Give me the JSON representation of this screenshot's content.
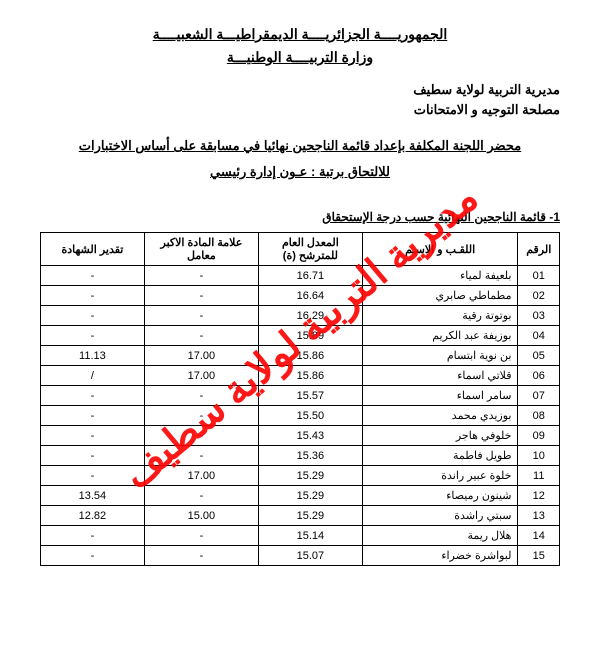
{
  "header": {
    "line1": "الجمهوريــــة الجزائريــــة الديمقراطيـــة الشعبيــــة",
    "line2": "وزارة التربيــــة الوطنيـــة",
    "line3": "مديرية التربية لولاية سطيف",
    "line4": "مصلحة التوجيه و الامتحانات",
    "title1": "محضر اللجنة المكلفة بإعداد قائمة الناجحين نهائيا في مسابقة على أساس الاختبارات",
    "title2": "للالتحاق برتبة : عـون إدارة رئيسي"
  },
  "section_title": "1- قائمة الناجحين النهائية حسب درجة الإستحقاق",
  "watermark": "مديرية التربية لولاية سطيف",
  "table": {
    "columns": [
      "الرقم",
      "اللقـب و الاسـم",
      "المعدل العام للمترشح (ة)",
      "علامة المادة الاكبر معامل",
      "تقدير الشهادة"
    ],
    "rows": [
      [
        "01",
        "بلعيفة لمياء",
        "16.71",
        "-",
        "-"
      ],
      [
        "02",
        "مطماطي صابري",
        "16.64",
        "-",
        "-"
      ],
      [
        "03",
        "بوتوتة رقية",
        "16.29",
        "-",
        "-"
      ],
      [
        "04",
        "بوزيفة عبد الكريم",
        "15.89",
        "-",
        "-"
      ],
      [
        "05",
        "بن نوية ابتسام",
        "15.86",
        "17.00",
        "11.13"
      ],
      [
        "06",
        "قلاتي اسماء",
        "15.86",
        "17.00",
        "/"
      ],
      [
        "07",
        "سامر اسماء",
        "15.57",
        "-",
        "-"
      ],
      [
        "08",
        "بوزيدي محمد",
        "15.50",
        "-",
        "-"
      ],
      [
        "09",
        "خلوفي هاجر",
        "15.43",
        "-",
        "-"
      ],
      [
        "10",
        "طويل فاطمة",
        "15.36",
        "-",
        "-"
      ],
      [
        "11",
        "خلوة عبير راندة",
        "15.29",
        "17.00",
        "-"
      ],
      [
        "12",
        "شينون رميصاء",
        "15.29",
        "-",
        "13.54"
      ],
      [
        "13",
        "سبتي راشدة",
        "15.29",
        "15.00",
        "12.82"
      ],
      [
        "14",
        "هلال ريمة",
        "15.14",
        "-",
        "-"
      ],
      [
        "15",
        "لبواشرة خضراء",
        "15.07",
        "-",
        "-"
      ]
    ],
    "col_widths": [
      "8%",
      "30%",
      "20%",
      "22%",
      "20%"
    ]
  }
}
